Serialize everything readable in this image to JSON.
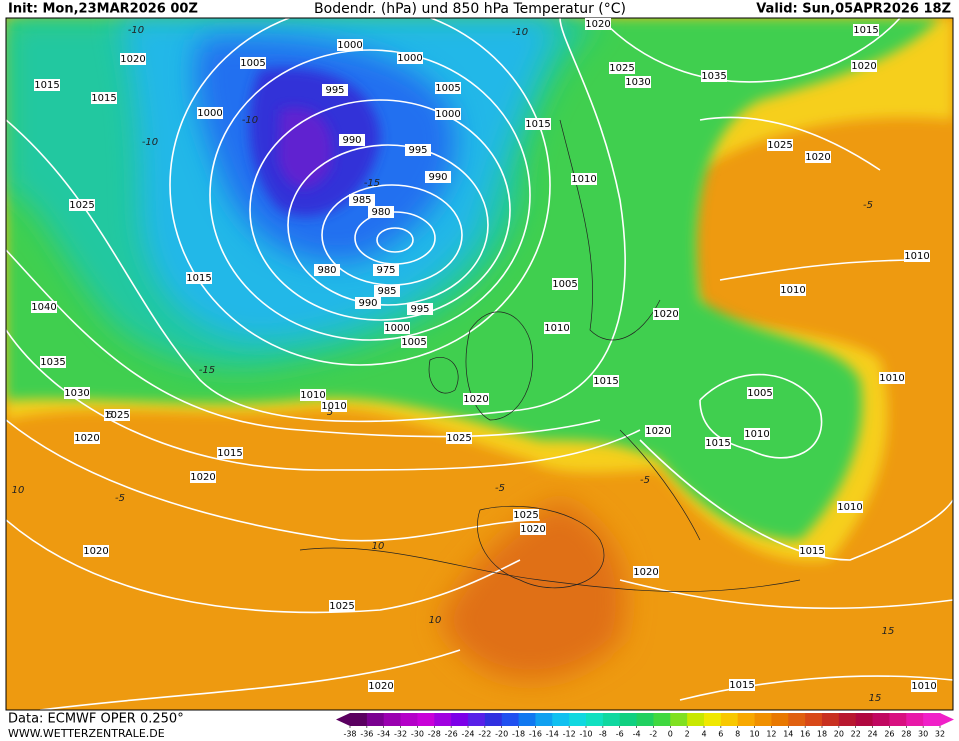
{
  "header": {
    "init": "Init: Mon,23MAR2026 00Z",
    "title": "Bodendr. (hPa) und 850 hPa Temperatur (°C)",
    "valid": "Valid: Sun,05APR2026 18Z"
  },
  "footer": {
    "data": "Data: ECMWF OPER 0.250°",
    "site": "WWW.WETTERZENTRALE.DE"
  },
  "isobar_labels": [
    "1000",
    "1005",
    "1000",
    "1020",
    "1015",
    "1015",
    "1000",
    "995",
    "1005",
    "1000",
    "1015",
    "1025",
    "1030",
    "1035",
    "1020",
    "1015",
    "1020",
    "990",
    "995",
    "990",
    "1010",
    "1025",
    "1020",
    "985",
    "980",
    "1025",
    "1015",
    "980",
    "975",
    "985",
    "990",
    "995",
    "1000",
    "1005",
    "1005",
    "1010",
    "1020",
    "1010",
    "1010",
    "1040",
    "1035",
    "1030",
    "1025",
    "1010",
    "1010",
    "1020",
    "1015",
    "1005",
    "1010",
    "1020",
    "1025",
    "1020",
    "1015",
    "1010",
    "1015",
    "1020",
    "1025",
    "1020",
    "1010",
    "1020",
    "1020",
    "1015",
    "1025",
    "1020",
    "1015",
    "1010"
  ],
  "temperature_labels": [
    "-10",
    "-10",
    "-10",
    "-15",
    "-15",
    "-5",
    "-5",
    "5",
    "5",
    "10",
    "10",
    "10",
    "15",
    "-5",
    "-10",
    "-5",
    "15"
  ],
  "colorbar": {
    "ticks": [
      -38,
      -36,
      -34,
      -32,
      -30,
      -28,
      -26,
      -24,
      -22,
      -20,
      -18,
      -16,
      -14,
      -12,
      -10,
      -8,
      -6,
      -4,
      -2,
      0,
      2,
      4,
      6,
      8,
      10,
      12,
      14,
      16,
      18,
      20,
      22,
      24,
      26,
      28,
      30,
      32
    ],
    "colors": [
      "#5a0060",
      "#7a0090",
      "#9a00b0",
      "#b400c8",
      "#c800d8",
      "#a000e0",
      "#7c00e8",
      "#5820e8",
      "#3030e0",
      "#2050f0",
      "#1078f0",
      "#10a0f0",
      "#10c0f0",
      "#10d8e0",
      "#10e0c0",
      "#10d8a0",
      "#10d080",
      "#20d060",
      "#40d840",
      "#80e020",
      "#c8e800",
      "#f0e800",
      "#f8c800",
      "#f8a800",
      "#f09000",
      "#e87800",
      "#e06010",
      "#d84818",
      "#c83020",
      "#b81830",
      "#b00840",
      "#c00860",
      "#d81080",
      "#e818a8",
      "#f020c8"
    ]
  }
}
